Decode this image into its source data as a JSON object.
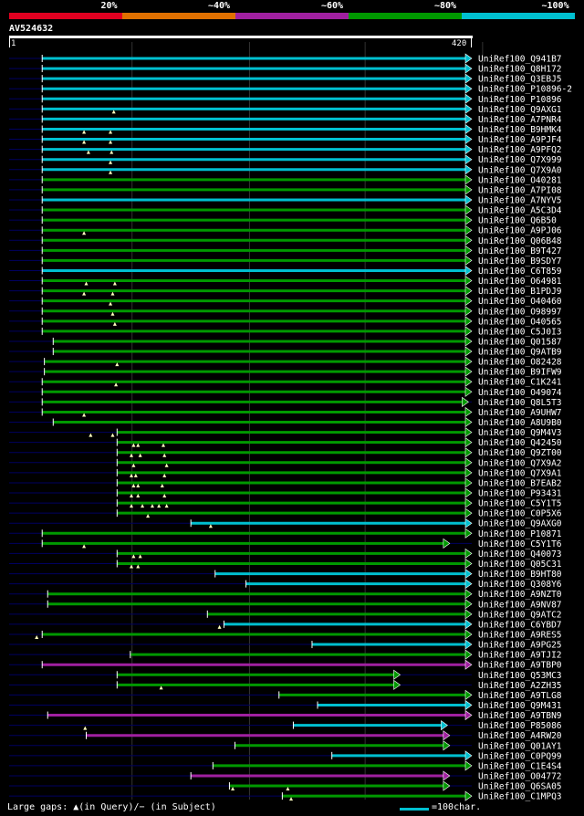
{
  "colors": {
    "cyan": "#00c0d0",
    "green": "#009900",
    "purple": "#a020a0",
    "orange": "#e07000",
    "red": "#e00020",
    "dark": "#000060"
  },
  "legend": {
    "labels": [
      "20%",
      "~40%",
      "~60%",
      "~80%",
      "~100%"
    ],
    "colors": [
      "#e00020",
      "#e07000",
      "#a020a0",
      "#009900",
      "#00c0d0"
    ]
  },
  "query": {
    "id": "AV524632",
    "start": "1",
    "end": "420",
    "length": 420
  },
  "footer": {
    "left": "Large gaps: ▲(in Query)/− (in Subject)",
    "right": "=100char."
  },
  "hits": [
    {
      "label": "UniRef100_Q941B7",
      "color": "cyan",
      "start": 30,
      "end": 420,
      "arrow": true,
      "gaps": []
    },
    {
      "label": "UniRef100_Q8H172",
      "color": "cyan",
      "start": 30,
      "end": 420,
      "arrow": true,
      "gaps": []
    },
    {
      "label": "UniRef100_Q3EBJ5",
      "color": "cyan",
      "start": 30,
      "end": 420,
      "arrow": true,
      "gaps": []
    },
    {
      "label": "UniRef100_P10896-2",
      "color": "cyan",
      "start": 30,
      "end": 420,
      "arrow": true,
      "gaps": []
    },
    {
      "label": "UniRef100_P10896",
      "color": "cyan",
      "start": 30,
      "end": 420,
      "arrow": true,
      "gaps": []
    },
    {
      "label": "UniRef100_Q9AXG1",
      "color": "cyan",
      "start": 30,
      "end": 420,
      "arrow": true,
      "gaps": [
        95
      ]
    },
    {
      "label": "UniRef100_A7PNR4",
      "color": "cyan",
      "start": 30,
      "end": 420,
      "arrow": true,
      "gaps": []
    },
    {
      "label": "UniRef100_B9HMK4",
      "color": "cyan",
      "start": 30,
      "end": 420,
      "arrow": true,
      "gaps": [
        68,
        92
      ]
    },
    {
      "label": "UniRef100_A9PJF4",
      "color": "cyan",
      "start": 30,
      "end": 420,
      "arrow": true,
      "gaps": [
        68,
        92
      ]
    },
    {
      "label": "UniRef100_A9PFQ2",
      "color": "cyan",
      "start": 30,
      "end": 420,
      "arrow": true,
      "gaps": [
        72,
        93
      ]
    },
    {
      "label": "UniRef100_Q7X999",
      "color": "cyan",
      "start": 30,
      "end": 420,
      "arrow": true,
      "gaps": [
        92
      ]
    },
    {
      "label": "UniRef100_Q7X9A0",
      "color": "cyan",
      "start": 30,
      "end": 420,
      "arrow": true,
      "gaps": [
        92
      ]
    },
    {
      "label": "UniRef100_O40281",
      "color": "green",
      "start": 30,
      "end": 420,
      "arrow": true,
      "gaps": []
    },
    {
      "label": "UniRef100_A7PI08",
      "color": "green",
      "start": 30,
      "end": 420,
      "arrow": true,
      "gaps": []
    },
    {
      "label": "UniRef100_A7NYV5",
      "color": "cyan",
      "start": 30,
      "end": 420,
      "arrow": true,
      "gaps": []
    },
    {
      "label": "UniRef100_A5C3D4",
      "color": "green",
      "start": 30,
      "end": 420,
      "arrow": true,
      "gaps": []
    },
    {
      "label": "UniRef100_Q6B50",
      "color": "green",
      "start": 30,
      "end": 420,
      "arrow": true,
      "gaps": []
    },
    {
      "label": "UniRef100_A9PJ06",
      "color": "green",
      "start": 30,
      "end": 420,
      "arrow": true,
      "gaps": [
        68
      ]
    },
    {
      "label": "UniRef100_Q06B48",
      "color": "green",
      "start": 30,
      "end": 420,
      "arrow": true,
      "gaps": []
    },
    {
      "label": "UniRef100_B9T427",
      "color": "green",
      "start": 30,
      "end": 420,
      "arrow": true,
      "gaps": []
    },
    {
      "label": "UniRef100_B9SDY7",
      "color": "green",
      "start": 30,
      "end": 420,
      "arrow": true,
      "gaps": []
    },
    {
      "label": "UniRef100_C6T859",
      "color": "cyan",
      "start": 30,
      "end": 420,
      "arrow": true,
      "gaps": []
    },
    {
      "label": "UniRef100_O64981",
      "color": "green",
      "start": 30,
      "end": 420,
      "arrow": true,
      "gaps": [
        70,
        96
      ]
    },
    {
      "label": "UniRef100_B1PDJ9",
      "color": "green",
      "start": 30,
      "end": 420,
      "arrow": true,
      "gaps": [
        68,
        94
      ]
    },
    {
      "label": "UniRef100_O40460",
      "color": "green",
      "start": 30,
      "end": 420,
      "arrow": true,
      "gaps": [
        92
      ]
    },
    {
      "label": "UniRef100_O98997",
      "color": "green",
      "start": 30,
      "end": 420,
      "arrow": true,
      "gaps": [
        94
      ]
    },
    {
      "label": "UniRef100_O40565",
      "color": "green",
      "start": 30,
      "end": 420,
      "arrow": true,
      "gaps": [
        96
      ]
    },
    {
      "label": "UniRef100_C5J0I3",
      "color": "green",
      "start": 30,
      "end": 420,
      "arrow": true,
      "gaps": []
    },
    {
      "label": "UniRef100_Q01587",
      "color": "green",
      "start": 40,
      "end": 420,
      "arrow": true,
      "gaps": []
    },
    {
      "label": "UniRef100_Q9ATB9",
      "color": "green",
      "start": 40,
      "end": 420,
      "arrow": true,
      "gaps": []
    },
    {
      "label": "UniRef100_O82428",
      "color": "green",
      "start": 32,
      "end": 420,
      "arrow": true,
      "gaps": [
        98
      ]
    },
    {
      "label": "UniRef100_B9IFW9",
      "color": "green",
      "start": 32,
      "end": 420,
      "arrow": true,
      "gaps": []
    },
    {
      "label": "UniRef100_C1K241",
      "color": "green",
      "start": 30,
      "end": 420,
      "arrow": true,
      "gaps": [
        97
      ]
    },
    {
      "label": "UniRef100_O49074",
      "color": "green",
      "start": 30,
      "end": 420,
      "arrow": true,
      "gaps": []
    },
    {
      "label": "UniRef100_Q8L5T3",
      "color": "green",
      "start": 30,
      "end": 417,
      "arrow": true,
      "gaps": []
    },
    {
      "label": "UniRef100_A9UHW7",
      "color": "green",
      "start": 30,
      "end": 420,
      "arrow": true,
      "gaps": [
        68
      ]
    },
    {
      "label": "UniRef100_A8U9B0",
      "color": "green",
      "start": 40,
      "end": 420,
      "arrow": true,
      "gaps": []
    },
    {
      "label": "UniRef100_Q9M4V3",
      "color": "green",
      "start": 98,
      "end": 420,
      "arrow": true,
      "gaps": [
        74,
        94
      ]
    },
    {
      "label": "UniRef100_Q42450",
      "color": "green",
      "start": 98,
      "end": 420,
      "arrow": true,
      "gaps": [
        113,
        117,
        140
      ]
    },
    {
      "label": "UniRef100_Q9ZT00",
      "color": "green",
      "start": 98,
      "end": 420,
      "arrow": true,
      "gaps": [
        111,
        119,
        141
      ]
    },
    {
      "label": "UniRef100_Q7X9A2",
      "color": "green",
      "start": 98,
      "end": 420,
      "arrow": true,
      "gaps": [
        113,
        143
      ]
    },
    {
      "label": "UniRef100_Q7X9A1",
      "color": "green",
      "start": 98,
      "end": 420,
      "arrow": true,
      "gaps": [
        111,
        115,
        141
      ]
    },
    {
      "label": "UniRef100_B7EAB2",
      "color": "green",
      "start": 98,
      "end": 420,
      "arrow": true,
      "gaps": [
        113,
        117,
        139
      ]
    },
    {
      "label": "UniRef100_P93431",
      "color": "green",
      "start": 98,
      "end": 420,
      "arrow": true,
      "gaps": [
        111,
        117,
        141
      ]
    },
    {
      "label": "UniRef100_C5Y1T5",
      "color": "green",
      "start": 98,
      "end": 420,
      "arrow": true,
      "gaps": [
        111,
        121,
        130,
        136,
        143
      ]
    },
    {
      "label": "UniRef100_C0P5X6",
      "color": "green",
      "start": 98,
      "end": 420,
      "arrow": true,
      "gaps": [
        126
      ]
    },
    {
      "label": "UniRef100_Q9AXG0",
      "color": "cyan",
      "start": 165,
      "end": 420,
      "arrow": true,
      "gaps": [
        183
      ]
    },
    {
      "label": "UniRef100_P10871",
      "color": "green",
      "start": 30,
      "end": 420,
      "arrow": true,
      "gaps": []
    },
    {
      "label": "UniRef100_C5Y1T6",
      "color": "green",
      "start": 30,
      "end": 400,
      "arrow": true,
      "gaps": [
        68
      ]
    },
    {
      "label": "UniRef100_Q40073",
      "color": "green",
      "start": 98,
      "end": 420,
      "arrow": true,
      "gaps": [
        113,
        119
      ]
    },
    {
      "label": "UniRef100_Q05C31",
      "color": "green",
      "start": 98,
      "end": 420,
      "arrow": true,
      "gaps": [
        111,
        117
      ]
    },
    {
      "label": "UniRef100_B9HT80",
      "color": "cyan",
      "start": 187,
      "end": 420,
      "arrow": true,
      "gaps": []
    },
    {
      "label": "UniRef100_Q308Y6",
      "color": "cyan",
      "start": 215,
      "end": 420,
      "arrow": true,
      "gaps": []
    },
    {
      "label": "UniRef100_A9NZT0",
      "color": "green",
      "start": 35,
      "end": 420,
      "arrow": true,
      "gaps": []
    },
    {
      "label": "UniRef100_A9NV87",
      "color": "green",
      "start": 35,
      "end": 420,
      "arrow": true,
      "gaps": []
    },
    {
      "label": "UniRef100_Q9ATC2",
      "color": "green",
      "start": 180,
      "end": 420,
      "arrow": true,
      "gaps": []
    },
    {
      "label": "UniRef100_C6YBD7",
      "color": "cyan",
      "start": 195,
      "end": 420,
      "arrow": true,
      "gaps": [
        191
      ]
    },
    {
      "label": "UniRef100_A9RES5",
      "color": "green",
      "start": 30,
      "end": 420,
      "arrow": true,
      "gaps": [
        25
      ]
    },
    {
      "label": "UniRef100_A9PG25",
      "color": "cyan",
      "start": 275,
      "end": 420,
      "arrow": true,
      "gaps": []
    },
    {
      "label": "UniRef100_A9TJI2",
      "color": "green",
      "start": 110,
      "end": 420,
      "arrow": true,
      "gaps": []
    },
    {
      "label": "UniRef100_A9TBP0",
      "color": "purple",
      "start": 30,
      "end": 420,
      "arrow": true,
      "gaps": []
    },
    {
      "label": "UniRef100_Q53MC3",
      "color": "green",
      "start": 98,
      "end": 355,
      "arrow": true,
      "gaps": []
    },
    {
      "label": "UniRef100_A2ZH35",
      "color": "green",
      "start": 98,
      "end": 355,
      "arrow": true,
      "gaps": [
        138
      ]
    },
    {
      "label": "UniRef100_A9TLG8",
      "color": "green",
      "start": 245,
      "end": 420,
      "arrow": true,
      "gaps": []
    },
    {
      "label": "UniRef100_Q9M431",
      "color": "cyan",
      "start": 280,
      "end": 420,
      "arrow": true,
      "gaps": []
    },
    {
      "label": "UniRef100_A9TBN9",
      "color": "purple",
      "start": 35,
      "end": 420,
      "arrow": true,
      "gaps": []
    },
    {
      "label": "UniRef100_P85086",
      "color": "cyan",
      "start": 258,
      "end": 398,
      "arrow": true,
      "gaps": [
        69
      ]
    },
    {
      "label": "UniRef100_A4RW20",
      "color": "purple",
      "start": 70,
      "end": 400,
      "arrow": true,
      "gaps": []
    },
    {
      "label": "UniRef100_Q01AY1",
      "color": "green",
      "start": 205,
      "end": 400,
      "arrow": true,
      "gaps": []
    },
    {
      "label": "UniRef100_C0PQ99",
      "color": "cyan",
      "start": 293,
      "end": 420,
      "arrow": true,
      "gaps": []
    },
    {
      "label": "UniRef100_C1E4S4",
      "color": "green",
      "start": 185,
      "end": 420,
      "arrow": true,
      "gaps": []
    },
    {
      "label": "UniRef100_O04772",
      "color": "purple",
      "start": 165,
      "end": 400,
      "arrow": true,
      "gaps": []
    },
    {
      "label": "UniRef100_Q6SA05",
      "color": "green",
      "start": 200,
      "end": 400,
      "arrow": true,
      "gaps": [
        203,
        253
      ]
    },
    {
      "label": "UniRef100_C1MPQ3",
      "color": "green",
      "start": 248,
      "end": 420,
      "arrow": true,
      "gaps": [
        256
      ]
    }
  ]
}
